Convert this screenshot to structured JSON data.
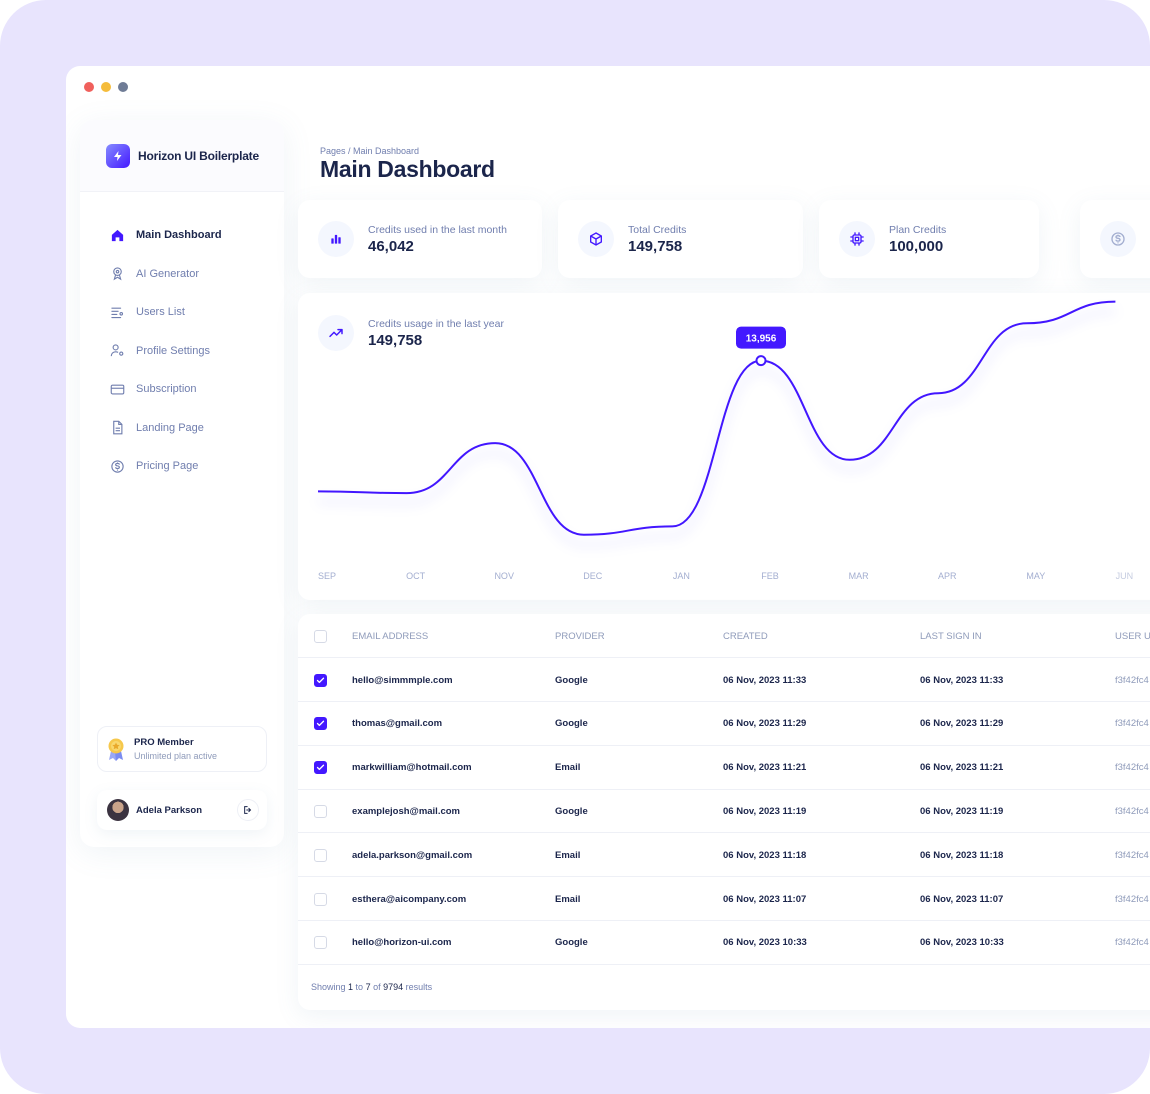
{
  "brand": {
    "name": "Horizon UI Boilerplate"
  },
  "sidebar": {
    "items": [
      {
        "label": "Main Dashboard",
        "icon": "home-icon",
        "active": true
      },
      {
        "label": "AI Generator",
        "icon": "badge-icon",
        "active": false
      },
      {
        "label": "Users List",
        "icon": "list-icon",
        "active": false
      },
      {
        "label": "Profile Settings",
        "icon": "user-gear-icon",
        "active": false
      },
      {
        "label": "Subscription",
        "icon": "credit-card-icon",
        "active": false
      },
      {
        "label": "Landing Page",
        "icon": "document-icon",
        "active": false
      },
      {
        "label": "Pricing Page",
        "icon": "dollar-circle-icon",
        "active": false
      }
    ],
    "pro": {
      "title": "PRO Member",
      "subtitle": "Unlimited plan active"
    },
    "user": {
      "name": "Adela Parkson"
    }
  },
  "header": {
    "breadcrumb": "Pages / Main Dashboard",
    "title": "Main Dashboard"
  },
  "stats": [
    {
      "label": "Credits used in the last month",
      "value": "46,042",
      "icon": "bar-chart-icon"
    },
    {
      "label": "Total Credits",
      "value": "149,758",
      "icon": "cube-icon"
    },
    {
      "label": "Plan Credits",
      "value": "100,000",
      "icon": "chip-icon"
    },
    {
      "label": "",
      "value": "",
      "icon": "dollar-circle-icon"
    }
  ],
  "chart": {
    "label": "Credits usage in the last year",
    "value": "149,758",
    "icon": "trend-icon",
    "tooltip": "13,956"
  },
  "chart_data": {
    "type": "line",
    "categories": [
      "SEP",
      "OCT",
      "NOV",
      "DEC",
      "JAN",
      "FEB",
      "MAR",
      "APR",
      "MAY",
      "JUN"
    ],
    "series": [
      {
        "values": [
          6100,
          6000,
          9000,
          3500,
          4000,
          13956,
          8000,
          12000,
          16200,
          17500
        ]
      }
    ],
    "highlight": {
      "category": "FEB",
      "value": 13956
    },
    "color": "#4318FF",
    "grid": false,
    "legend": "none"
  },
  "table": {
    "columns": [
      "EMAIL ADDRESS",
      "PROVIDER",
      "CREATED",
      "LAST SIGN IN",
      "USER UI"
    ],
    "rows": [
      {
        "checked": true,
        "email": "hello@simmmple.com",
        "provider": "Google",
        "created": "06 Nov, 2023 11:33",
        "last": "06 Nov, 2023 11:33",
        "uid": "f3f42fc4"
      },
      {
        "checked": true,
        "email": "thomas@gmail.com",
        "provider": "Google",
        "created": "06 Nov, 2023 11:29",
        "last": "06 Nov, 2023 11:29",
        "uid": "f3f42fc4"
      },
      {
        "checked": true,
        "email": "markwilliam@hotmail.com",
        "provider": "Email",
        "created": "06 Nov, 2023 11:21",
        "last": "06 Nov, 2023 11:21",
        "uid": "f3f42fc4"
      },
      {
        "checked": false,
        "email": "examplejosh@mail.com",
        "provider": "Google",
        "created": "06 Nov, 2023 11:19",
        "last": "06 Nov, 2023 11:19",
        "uid": "f3f42fc4"
      },
      {
        "checked": false,
        "email": "adela.parkson@gmail.com",
        "provider": "Email",
        "created": "06 Nov, 2023 11:18",
        "last": "06 Nov, 2023 11:18",
        "uid": "f3f42fc4"
      },
      {
        "checked": false,
        "email": "esthera@aicompany.com",
        "provider": "Email",
        "created": "06 Nov, 2023 11:07",
        "last": "06 Nov, 2023 11:07",
        "uid": "f3f42fc4"
      },
      {
        "checked": false,
        "email": "hello@horizon-ui.com",
        "provider": "Google",
        "created": "06 Nov, 2023 10:33",
        "last": "06 Nov, 2023 10:33",
        "uid": "f3f42fc4"
      }
    ],
    "footer": {
      "prefix": "Showing ",
      "from": "1",
      "mid1": " to ",
      "to": "7",
      "mid2": " of ",
      "total": "9794",
      "suffix": " results"
    }
  }
}
